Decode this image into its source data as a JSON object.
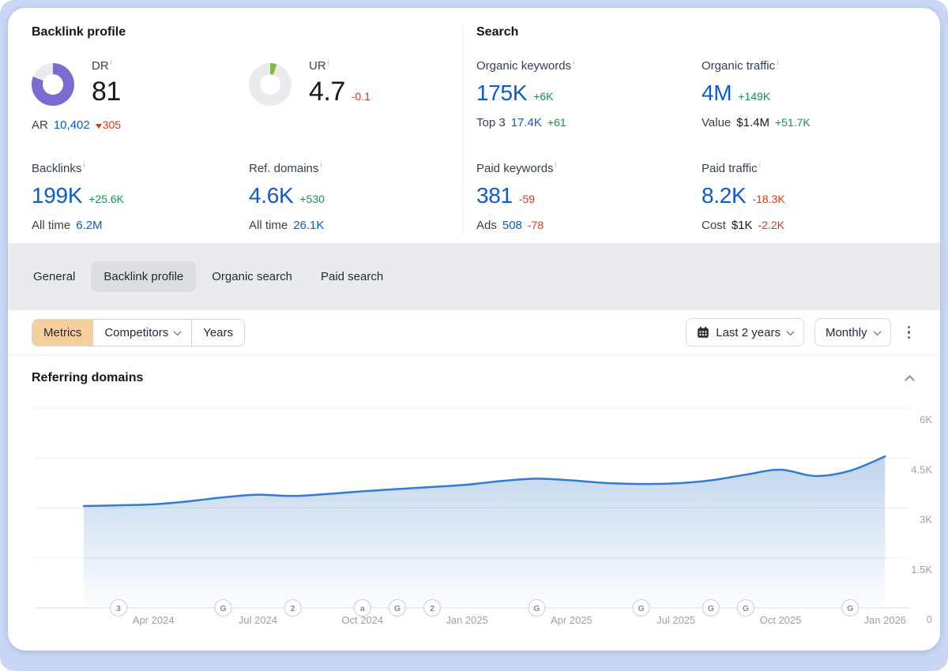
{
  "colors": {
    "blue": "#0d5bd0",
    "green": "#15934d",
    "red": "#de3618",
    "dr_donut": "#7b6cd0",
    "ur_donut": "#82bb3f",
    "donut_rest": "#eaebee",
    "line": "#2f7cd6",
    "frame": "#c9d6f6",
    "tab_band": "#e9ebee",
    "metrics_highlight": "#f8cf9c"
  },
  "backlink_profile": {
    "title": "Backlink profile",
    "dr": {
      "label": "DR",
      "value": "81",
      "donut_pct": 81
    },
    "ar": {
      "label": "AR",
      "value": "10,402",
      "delta": "305"
    },
    "ur": {
      "label": "UR",
      "value": "4.7",
      "delta": "-0.1",
      "donut_pct": 5
    },
    "backlinks": {
      "label": "Backlinks",
      "value": "199K",
      "delta": "+25.6K",
      "sub_label": "All time",
      "sub_value": "6.2M"
    },
    "ref_domains": {
      "label": "Ref. domains",
      "value": "4.6K",
      "delta": "+530",
      "sub_label": "All time",
      "sub_value": "26.1K"
    }
  },
  "search": {
    "title": "Search",
    "organic_keywords": {
      "label": "Organic keywords",
      "value": "175K",
      "delta": "+6K",
      "sub_label": "Top 3",
      "sub_value": "17.4K",
      "sub_delta": "+61",
      "sub_delta_dir": "pos"
    },
    "organic_traffic": {
      "label": "Organic traffic",
      "value": "4M",
      "delta": "+149K",
      "sub_label": "Value",
      "sub_value": "$1.4M",
      "sub_delta": "+51.7K",
      "sub_delta_dir": "pos"
    },
    "paid_keywords": {
      "label": "Paid keywords",
      "value": "381",
      "delta": "-59",
      "sub_label": "Ads",
      "sub_value": "508",
      "sub_delta": "-78",
      "sub_delta_dir": "neg"
    },
    "paid_traffic": {
      "label": "Paid traffic",
      "value": "8.2K",
      "delta": "-18.3K",
      "sub_label": "Cost",
      "sub_value": "$1K",
      "sub_delta": "-2.2K",
      "sub_delta_dir": "neg"
    }
  },
  "tabs": [
    {
      "label": "General",
      "active": false
    },
    {
      "label": "Backlink profile",
      "active": true
    },
    {
      "label": "Organic search",
      "active": false
    },
    {
      "label": "Paid search",
      "active": false
    }
  ],
  "toolbar": {
    "metrics_label": "Metrics",
    "competitors_label": "Competitors",
    "years_label": "Years",
    "range_label": "Last 2 years",
    "granularity_label": "Monthly"
  },
  "chart_section": {
    "title": "Referring domains"
  },
  "chart_data": {
    "type": "area",
    "title": "Referring domains",
    "x": [
      "Feb 2024",
      "Mar 2024",
      "Apr 2024",
      "May 2024",
      "Jun 2024",
      "Jul 2024",
      "Aug 2024",
      "Sep 2024",
      "Oct 2024",
      "Nov 2024",
      "Dec 2024",
      "Jan 2025",
      "Feb 2025",
      "Mar 2025",
      "Apr 2025",
      "May 2025",
      "Jun 2025",
      "Jul 2025",
      "Aug 2025",
      "Sep 2025",
      "Oct 2025",
      "Nov 2025",
      "Dec 2025",
      "Jan 2026"
    ],
    "values": [
      3060,
      3080,
      3110,
      3200,
      3320,
      3400,
      3360,
      3420,
      3500,
      3570,
      3630,
      3700,
      3810,
      3880,
      3830,
      3750,
      3720,
      3740,
      3830,
      4000,
      4150,
      3960,
      4120,
      4550
    ],
    "ylim": [
      0,
      6000
    ],
    "yticks": [
      0,
      1500,
      3000,
      4500,
      6000
    ],
    "ytick_labels": [
      "0",
      "1.5K",
      "3K",
      "4.5K",
      "6K"
    ],
    "xticks": [
      {
        "i": 2,
        "label": "Apr 2024"
      },
      {
        "i": 5,
        "label": "Jul 2024"
      },
      {
        "i": 8,
        "label": "Oct 2024"
      },
      {
        "i": 11,
        "label": "Jan 2025"
      },
      {
        "i": 14,
        "label": "Apr 2025"
      },
      {
        "i": 17,
        "label": "Jul 2025"
      },
      {
        "i": 20,
        "label": "Oct 2025"
      },
      {
        "i": 23,
        "label": "Jan 2026"
      }
    ],
    "event_markers": [
      {
        "i": 1,
        "glyph": "3"
      },
      {
        "i": 4,
        "glyph": "G"
      },
      {
        "i": 6,
        "glyph": "2"
      },
      {
        "i": 8,
        "glyph": "a"
      },
      {
        "i": 9,
        "glyph": "G"
      },
      {
        "i": 10,
        "glyph": "2"
      },
      {
        "i": 13,
        "glyph": "G"
      },
      {
        "i": 16,
        "glyph": "G"
      },
      {
        "i": 18,
        "glyph": "G"
      },
      {
        "i": 19,
        "glyph": "G"
      },
      {
        "i": 22,
        "glyph": "G"
      }
    ],
    "grid": true,
    "legend": false,
    "yaxis_position": "right"
  }
}
